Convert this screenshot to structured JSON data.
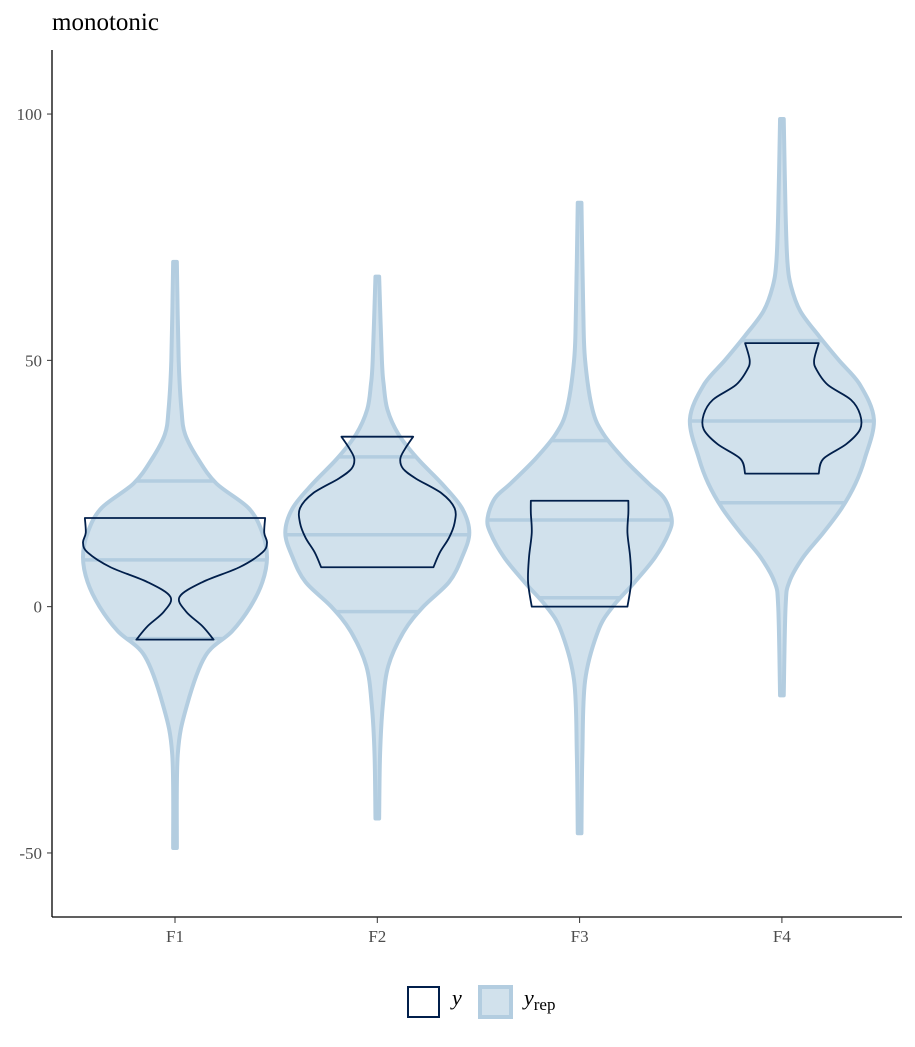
{
  "chart_data": {
    "type": "violin",
    "title": "monotonic",
    "categories": [
      "F1",
      "F2",
      "F3",
      "F4"
    ],
    "ylim": [
      -63,
      113
    ],
    "yticks": [
      -50,
      0,
      50,
      100
    ],
    "series": [
      {
        "name": "y",
        "color": "#011f4b",
        "fill": "none",
        "groups": [
          {
            "profile": {
              "y": [
                -6.7,
                -4,
                -1,
                2,
                5,
                8,
                11,
                13,
                15,
                18
              ],
              "width": [
                0.42,
                0.3,
                0.12,
                0.05,
                0.3,
                0.7,
                0.95,
                1.0,
                0.97,
                0.98
              ]
            }
          },
          {
            "profile": {
              "y": [
                8,
                11,
                14,
                17,
                20,
                23,
                26,
                28,
                30,
                32,
                34.5
              ],
              "width": [
                0.61,
                0.68,
                0.78,
                0.84,
                0.84,
                0.7,
                0.42,
                0.28,
                0.25,
                0.3,
                0.39
              ]
            }
          },
          {
            "profile": {
              "y": [
                0,
                5,
                10,
                15,
                19,
                21.5
              ],
              "width": [
                0.52,
                0.56,
                0.55,
                0.52,
                0.53,
                0.53
              ]
            }
          },
          {
            "profile": {
              "y": [
                27,
                30,
                33,
                36,
                39,
                42,
                45,
                48,
                50,
                53.5
              ],
              "width": [
                0.4,
                0.45,
                0.7,
                0.85,
                0.85,
                0.75,
                0.5,
                0.38,
                0.35,
                0.4
              ]
            }
          }
        ]
      },
      {
        "name": "y",
        "subscript": "rep",
        "color": "#b3cde0",
        "fill": "#d1e1ec",
        "groups": [
          {
            "quantiles": [
              -6.5,
              9.5,
              25.5
            ],
            "profile": {
              "y": [
                -49,
                -30,
                -20,
                -10,
                -5,
                0,
                5,
                10,
                15,
                20,
                25,
                30,
                35,
                40,
                50,
                70
              ],
              "width": [
                0.02,
                0.03,
                0.13,
                0.33,
                0.62,
                0.82,
                0.95,
                1.0,
                0.95,
                0.8,
                0.45,
                0.25,
                0.11,
                0.07,
                0.04,
                0.02
              ]
            }
          },
          {
            "quantiles": [
              -1,
              14.6,
              30.4
            ],
            "profile": {
              "y": [
                -43,
                -30,
                -20,
                -12,
                -5,
                0,
                5,
                10,
                15,
                20,
                25,
                30,
                35,
                40,
                45,
                50,
                67
              ],
              "width": [
                0.02,
                0.03,
                0.06,
                0.12,
                0.29,
                0.5,
                0.78,
                0.92,
                1.0,
                0.92,
                0.7,
                0.44,
                0.23,
                0.11,
                0.07,
                0.05,
                0.02
              ]
            }
          },
          {
            "quantiles": [
              1.8,
              17.6,
              33.7
            ],
            "profile": {
              "y": [
                -46,
                -30,
                -15,
                -5,
                0,
                5,
                10,
                15,
                18,
                22,
                25,
                30,
                35,
                40,
                50,
                60,
                82
              ],
              "width": [
                0.02,
                0.03,
                0.06,
                0.2,
                0.36,
                0.6,
                0.82,
                0.97,
                1.0,
                0.92,
                0.75,
                0.48,
                0.26,
                0.14,
                0.06,
                0.04,
                0.02
              ]
            }
          },
          {
            "quantiles": [
              21.1,
              37.7,
              54
            ],
            "profile": {
              "y": [
                -18,
                0,
                5,
                10,
                15,
                20,
                25,
                30,
                38,
                45,
                50,
                55,
                60,
                65,
                70,
                80,
                99
              ],
              "width": [
                0.02,
                0.04,
                0.08,
                0.23,
                0.45,
                0.65,
                0.8,
                0.9,
                1.0,
                0.85,
                0.62,
                0.4,
                0.2,
                0.1,
                0.06,
                0.04,
                0.02
              ]
            }
          }
        ]
      }
    ]
  }
}
